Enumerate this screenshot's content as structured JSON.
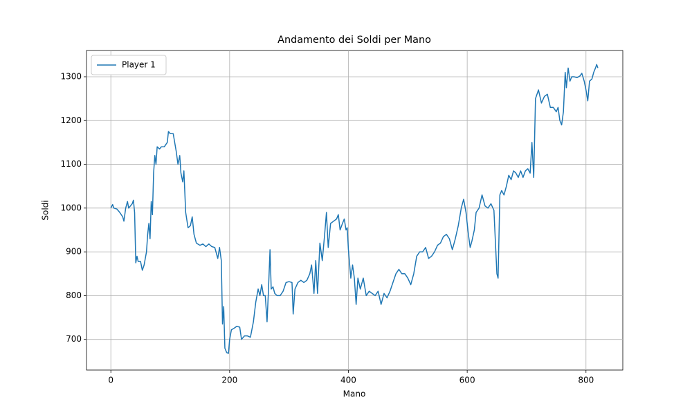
{
  "chart_data": {
    "type": "line",
    "title": "Andamento dei Soldi per Mano",
    "xlabel": "Mano",
    "ylabel": "Soldi",
    "xlim": [
      -41,
      862
    ],
    "ylim": [
      630,
      1360
    ],
    "xticks": [
      0,
      200,
      400,
      600,
      800
    ],
    "yticks": [
      700,
      800,
      900,
      1000,
      1100,
      1200,
      1300
    ],
    "grid": true,
    "legend": "upper left",
    "x": [
      0,
      3,
      5,
      10,
      15,
      20,
      22,
      25,
      28,
      30,
      33,
      36,
      38,
      40,
      42,
      44,
      46,
      50,
      53,
      56,
      60,
      62,
      64,
      66,
      68,
      70,
      72,
      74,
      76,
      78,
      82,
      85,
      90,
      95,
      97,
      100,
      105,
      110,
      113,
      116,
      118,
      121,
      123,
      126,
      130,
      134,
      137,
      140,
      144,
      150,
      155,
      160,
      165,
      170,
      175,
      180,
      183,
      186,
      188,
      190,
      192,
      195,
      198,
      200,
      203,
      207,
      212,
      217,
      220,
      225,
      230,
      235,
      240,
      244,
      248,
      251,
      254,
      257,
      260,
      263,
      265,
      268,
      270,
      273,
      276,
      280,
      285,
      290,
      295,
      300,
      305,
      307,
      310,
      315,
      320,
      325,
      330,
      335,
      338,
      342,
      345,
      348,
      352,
      356,
      360,
      363,
      366,
      370,
      375,
      380,
      383,
      386,
      390,
      393,
      396,
      398,
      400,
      404,
      407,
      410,
      413,
      416,
      420,
      425,
      430,
      435,
      440,
      445,
      450,
      455,
      460,
      465,
      470,
      475,
      480,
      485,
      490,
      495,
      500,
      505,
      510,
      515,
      520,
      525,
      530,
      535,
      540,
      545,
      550,
      555,
      560,
      565,
      570,
      575,
      580,
      585,
      590,
      594,
      598,
      602,
      605,
      608,
      612,
      615,
      620,
      625,
      630,
      635,
      640,
      645,
      650,
      652,
      655,
      658,
      662,
      666,
      670,
      674,
      678,
      682,
      686,
      690,
      694,
      698,
      702,
      706,
      709,
      712,
      715,
      720,
      725,
      730,
      735,
      740,
      745,
      750,
      753,
      756,
      759,
      762,
      765,
      767,
      770,
      773,
      776,
      780,
      785,
      790,
      793,
      797,
      800,
      803,
      806,
      810,
      813,
      816,
      818,
      820
    ],
    "series": [
      {
        "name": "Player 1",
        "color": "#1f77b4",
        "values": [
          1000,
          1008,
          1000,
          998,
          990,
          980,
          970,
          1000,
          1015,
          1000,
          1005,
          1010,
          1018,
          990,
          875,
          890,
          878,
          878,
          858,
          870,
          900,
          940,
          965,
          930,
          1015,
          985,
          1080,
          1120,
          1100,
          1140,
          1135,
          1140,
          1140,
          1150,
          1175,
          1170,
          1170,
          1130,
          1100,
          1120,
          1080,
          1060,
          1085,
          990,
          955,
          960,
          980,
          940,
          920,
          915,
          918,
          912,
          918,
          912,
          910,
          885,
          910,
          880,
          735,
          775,
          680,
          670,
          668,
          700,
          722,
          725,
          730,
          728,
          700,
          708,
          708,
          705,
          740,
          785,
          815,
          800,
          825,
          800,
          800,
          740,
          800,
          905,
          815,
          820,
          805,
          800,
          800,
          810,
          830,
          832,
          830,
          758,
          815,
          830,
          835,
          830,
          835,
          850,
          870,
          805,
          880,
          805,
          920,
          880,
          940,
          990,
          910,
          965,
          970,
          975,
          985,
          950,
          965,
          975,
          950,
          955,
          905,
          840,
          870,
          840,
          780,
          840,
          815,
          840,
          800,
          810,
          805,
          800,
          810,
          780,
          805,
          795,
          810,
          830,
          850,
          860,
          850,
          850,
          840,
          825,
          850,
          890,
          900,
          900,
          910,
          885,
          890,
          900,
          915,
          920,
          935,
          940,
          930,
          905,
          930,
          960,
          1000,
          1020,
          990,
          940,
          910,
          925,
          950,
          990,
          1000,
          1030,
          1005,
          1000,
          1010,
          995,
          850,
          840,
          1030,
          1040,
          1030,
          1050,
          1075,
          1065,
          1085,
          1080,
          1070,
          1085,
          1070,
          1085,
          1090,
          1080,
          1150,
          1070,
          1250,
          1270,
          1240,
          1255,
          1260,
          1230,
          1230,
          1220,
          1230,
          1200,
          1190,
          1220,
          1310,
          1275,
          1320,
          1290,
          1300,
          1300,
          1298,
          1302,
          1308,
          1290,
          1270,
          1245,
          1290,
          1295,
          1310,
          1320,
          1328,
          1320
        ]
      }
    ]
  }
}
